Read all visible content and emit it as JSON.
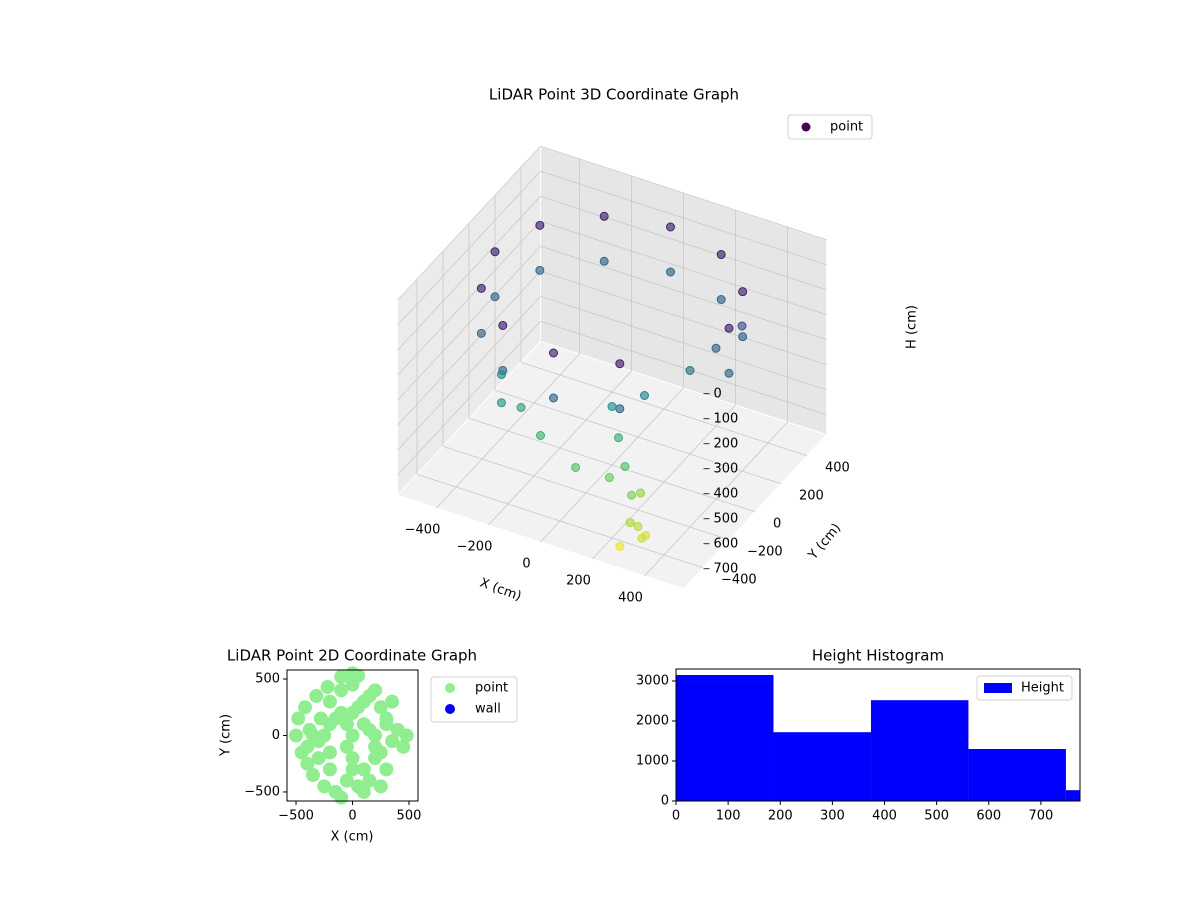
{
  "chart_data": [
    {
      "type": "scatter3d",
      "title": "LiDAR Point 3D Coordinate Graph",
      "xlabel": "X (cm)",
      "ylabel": "Y (cm)",
      "zlabel": "H (cm)",
      "xlim": [
        -550,
        550
      ],
      "ylim": [
        -550,
        550
      ],
      "zlim": [
        0,
        780
      ],
      "invert_z": true,
      "xticks": [
        {
          "value": -400,
          "label": "−400"
        },
        {
          "value": -200,
          "label": "−200"
        },
        0,
        200,
        400
      ],
      "yticks": [
        {
          "value": -400,
          "label": "−400"
        },
        {
          "value": -200,
          "label": "−200"
        },
        0,
        200,
        400
      ],
      "zticks": [
        0,
        100,
        200,
        300,
        400,
        500,
        600,
        700
      ],
      "colormap": "viridis",
      "grid": true,
      "legend": "upper right",
      "series": [
        {
          "name": "point",
          "color": "#440154",
          "x": [
            0,
            -225,
            -390,
            -450,
            -390,
            -225,
            0,
            225,
            225,
            390,
            450,
            0,
            -225,
            -390,
            -450,
            -390,
            -225,
            0,
            225,
            225,
            390,
            450,
            100,
            150,
            200,
            250,
            300,
            320,
            280,
            -200,
            -100,
            50,
            200,
            300,
            350,
            400,
            -300,
            -250,
            150,
            250,
            330,
            260
          ],
          "y": [
            450,
            390,
            225,
            0,
            -225,
            -390,
            -450,
            -390,
            390,
            225,
            0,
            450,
            390,
            225,
            0,
            -225,
            -390,
            -450,
            -390,
            390,
            225,
            0,
            -200,
            -250,
            -300,
            -350,
            -400,
            -380,
            -420,
            -300,
            -350,
            -380,
            -150,
            0,
            100,
            200,
            -250,
            -350,
            -320,
            -280,
            -430,
            -460
          ],
          "z": [
            80,
            80,
            80,
            80,
            80,
            80,
            80,
            80,
            80,
            80,
            80,
            260,
            260,
            260,
            260,
            260,
            260,
            260,
            260,
            260,
            260,
            260,
            400,
            480,
            550,
            620,
            700,
            740,
            680,
            450,
            500,
            560,
            350,
            300,
            250,
            200,
            380,
            420,
            600,
            650,
            720,
            760
          ]
        }
      ]
    },
    {
      "type": "scatter",
      "title": "LiDAR Point 2D Coordinate Graph",
      "xlabel": "X (cm)",
      "ylabel": "Y (cm)",
      "xlim": [
        -580,
        580
      ],
      "ylim": [
        -580,
        580
      ],
      "xticks": [
        {
          "value": -500,
          "label": "−500"
        },
        0,
        500
      ],
      "yticks": [
        {
          "value": -500,
          "label": "−500"
        },
        0,
        500
      ],
      "legend": "outside right",
      "series": [
        {
          "name": "point",
          "color": "#90ee90",
          "x": [
            -500,
            -480,
            -450,
            -420,
            -400,
            -380,
            -350,
            -320,
            -300,
            -280,
            -250,
            -220,
            -200,
            -150,
            -100,
            -50,
            0,
            50,
            100,
            150,
            200,
            250,
            300,
            350,
            400,
            450,
            480,
            -100,
            0,
            100,
            200,
            -300,
            -200,
            -100,
            0,
            100,
            200,
            300,
            -50,
            50,
            -250,
            -150,
            -50,
            50,
            150,
            250,
            -350,
            -200,
            0,
            150,
            300,
            -400,
            -200,
            0,
            200,
            100,
            0,
            -100,
            250,
            350
          ],
          "y": [
            0,
            150,
            -150,
            250,
            -250,
            50,
            -350,
            350,
            -50,
            150,
            -450,
            430,
            300,
            -500,
            520,
            -400,
            450,
            530,
            -300,
            350,
            -200,
            250,
            100,
            -50,
            50,
            -100,
            0,
            200,
            0,
            100,
            -100,
            -200,
            -300,
            400,
            -200,
            300,
            400,
            -300,
            100,
            -450,
            0,
            150,
            -100,
            250,
            50,
            -150,
            0,
            100,
            -300,
            -400,
            150,
            -100,
            -150,
            200,
            0,
            -500,
            550,
            -550,
            -450,
            300
          ]
        },
        {
          "name": "wall",
          "color": "#0000ff",
          "x": [],
          "y": []
        }
      ]
    },
    {
      "type": "histogram",
      "title": "Height Histogram",
      "bins": [
        0,
        187,
        374,
        561,
        748,
        935
      ],
      "values": [
        3150,
        1720,
        2520,
        1300,
        270
      ],
      "xlim": [
        0,
        775
      ],
      "ylim": [
        0,
        3300
      ],
      "xticks": [
        0,
        100,
        200,
        300,
        400,
        500,
        600,
        700
      ],
      "yticks": [
        0,
        1000,
        2000,
        3000
      ],
      "series_name": "Height",
      "color": "#0000ff",
      "legend": "upper right"
    }
  ]
}
